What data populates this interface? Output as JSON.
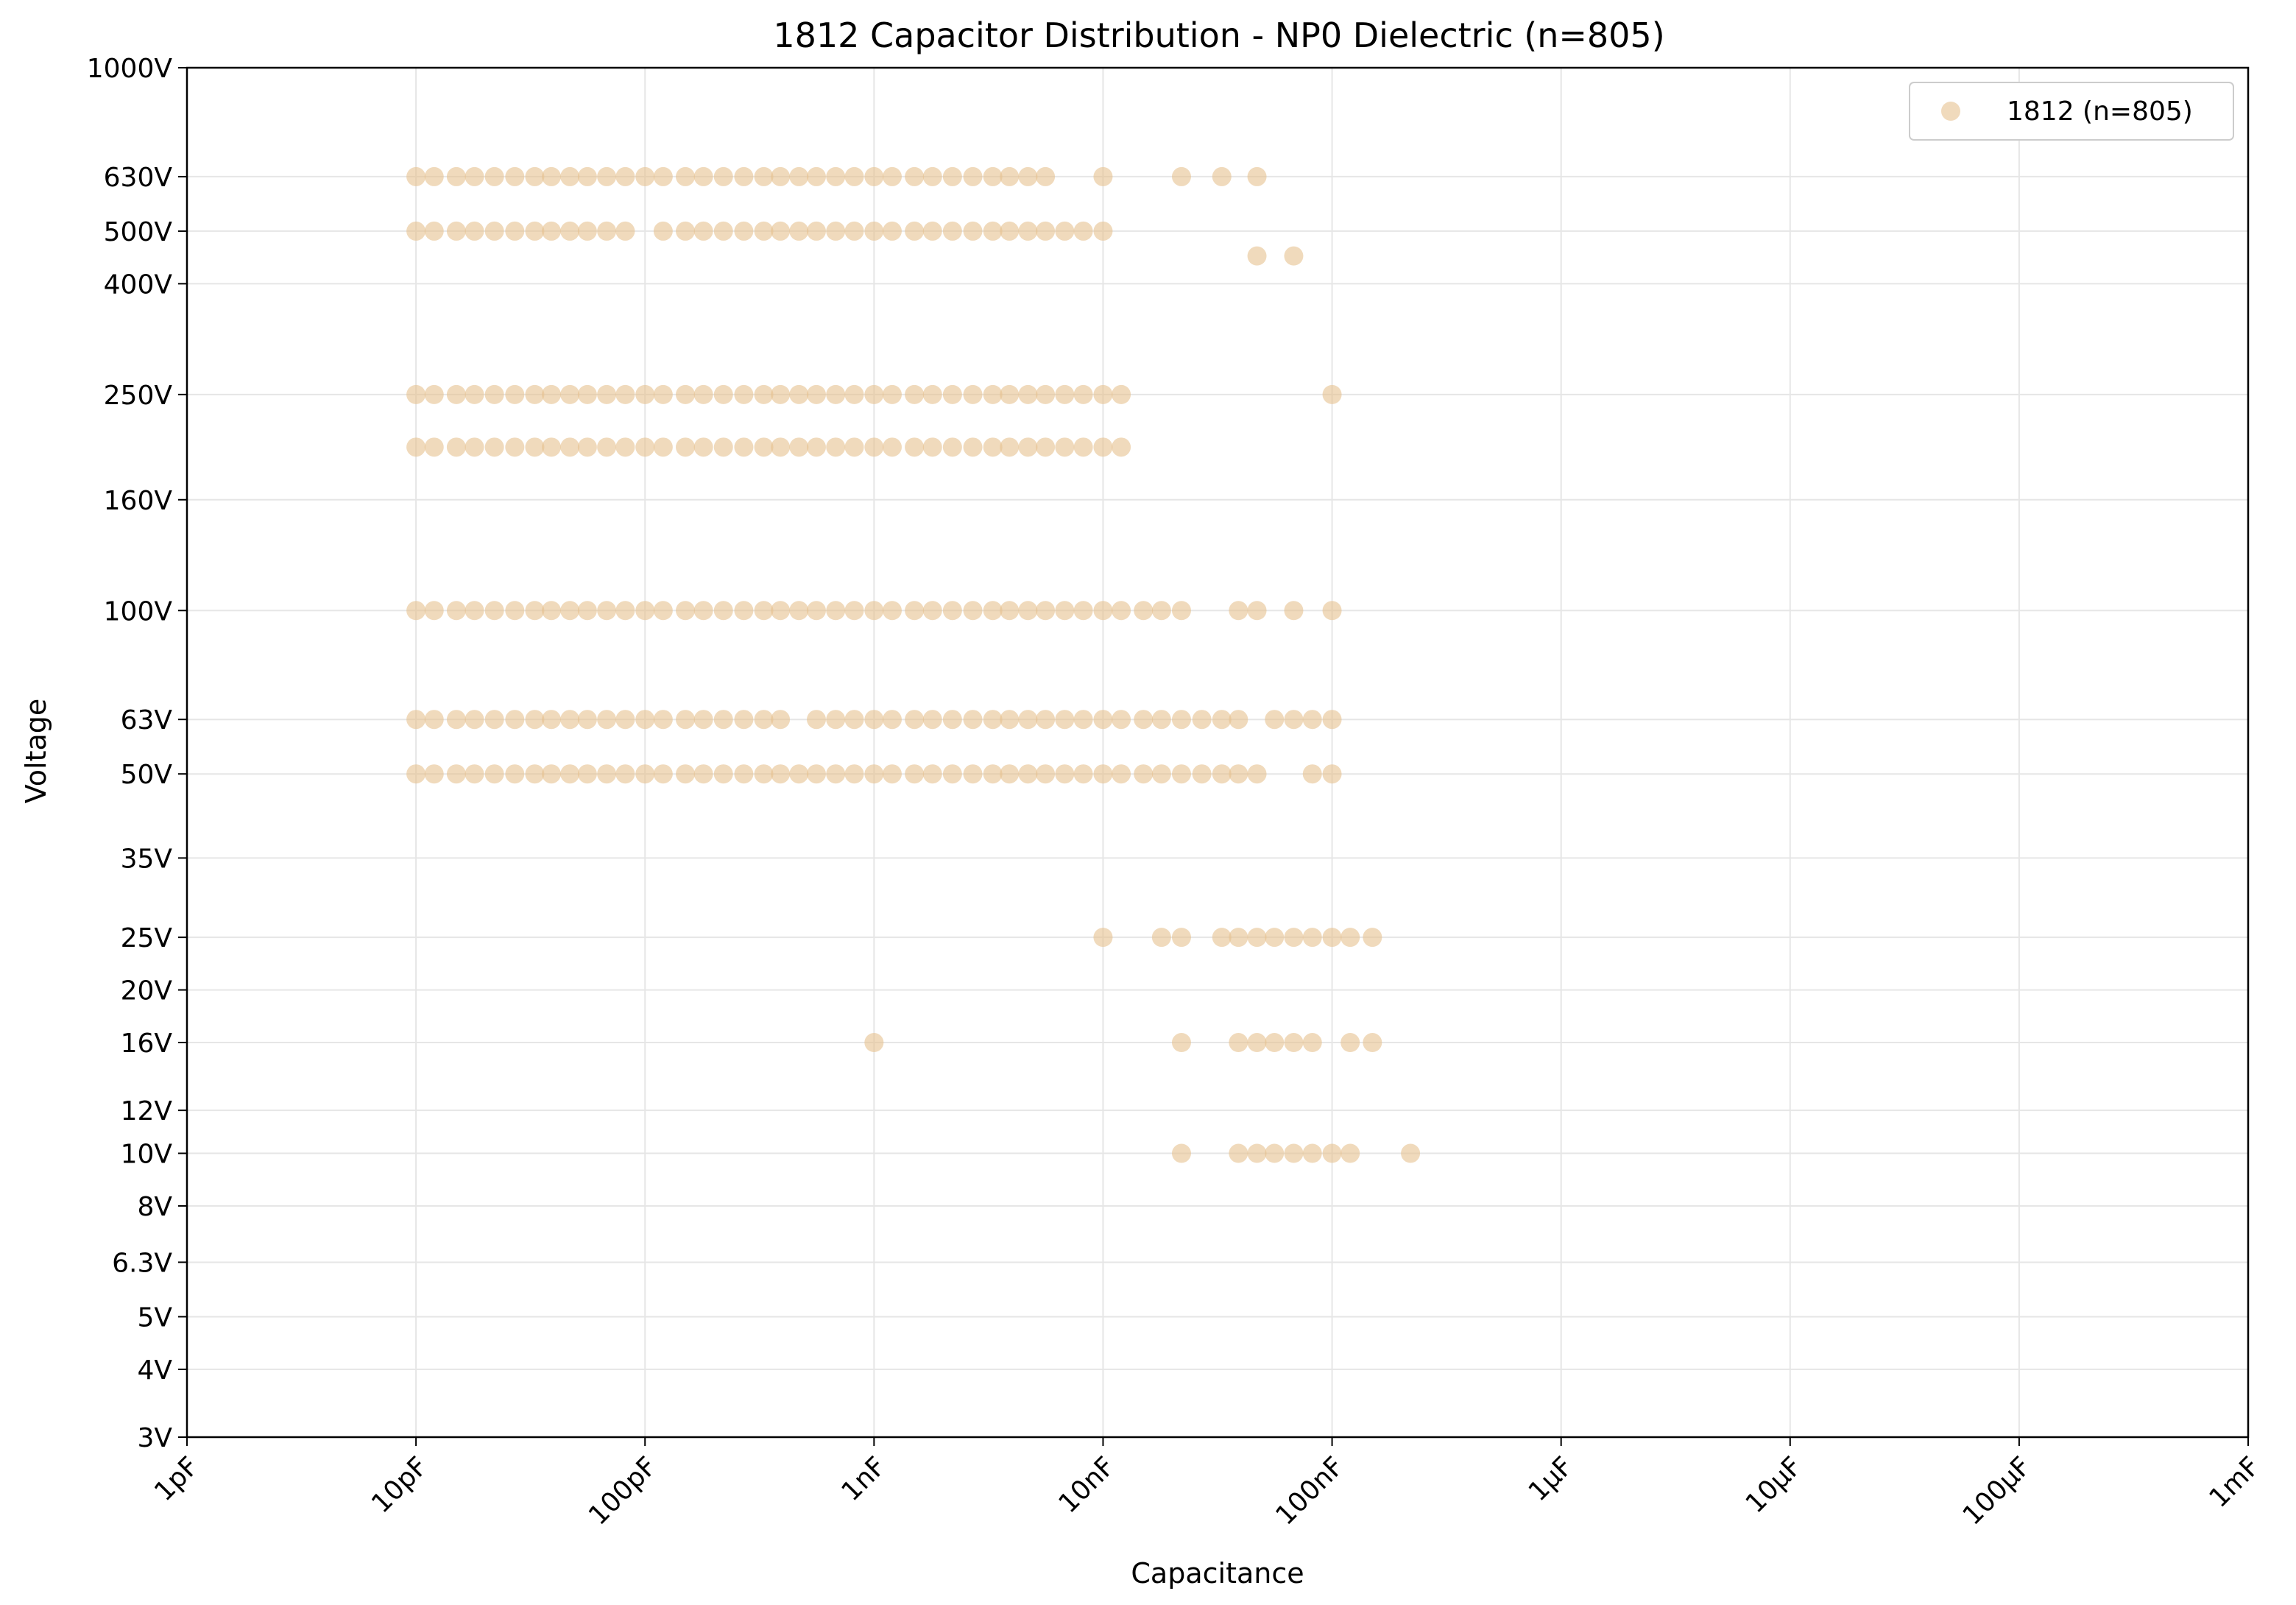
{
  "chart_data": {
    "type": "scatter",
    "title": "1812 Capacitor Distribution - NP0 Dielectric (n=805)",
    "xlabel": "Capacitance",
    "ylabel": "Voltage",
    "x_scale": "log",
    "y_scale": "log",
    "xlim": [
      "1pF",
      "1mF"
    ],
    "ylim": [
      "3V",
      "1000V"
    ],
    "grid": true,
    "legend_position": "top-right",
    "x_ticks": [
      "1pF",
      "10pF",
      "100pF",
      "1nF",
      "10nF",
      "100nF",
      "1µF",
      "10µF",
      "100µF",
      "1mF"
    ],
    "y_ticks": [
      "3V",
      "4V",
      "5V",
      "6.3V",
      "8V",
      "10V",
      "12V",
      "16V",
      "20V",
      "25V",
      "35V",
      "50V",
      "63V",
      "100V",
      "160V",
      "250V",
      "400V",
      "500V",
      "630V",
      "1000V"
    ],
    "marker_color": "#e6c18f",
    "series": [
      {
        "name": "1812 (n=805)",
        "rows": [
          {
            "voltage": "630V",
            "capacitance": [
              "10pF",
              "12pF",
              "15pF",
              "18pF",
              "22pF",
              "27pF",
              "33pF",
              "39pF",
              "47pF",
              "56pF",
              "68pF",
              "82pF",
              "100pF",
              "120pF",
              "150pF",
              "180pF",
              "220pF",
              "270pF",
              "330pF",
              "390pF",
              "470pF",
              "560pF",
              "680pF",
              "820pF",
              "1nF",
              "1.2nF",
              "1.5nF",
              "1.8nF",
              "2.2nF",
              "2.7nF",
              "3.3nF",
              "3.9nF",
              "4.7nF",
              "5.6nF",
              "10nF",
              "22nF",
              "33nF",
              "47nF"
            ]
          },
          {
            "voltage": "500V",
            "capacitance": [
              "10pF",
              "12pF",
              "15pF",
              "18pF",
              "22pF",
              "27pF",
              "33pF",
              "39pF",
              "47pF",
              "56pF",
              "68pF",
              "82pF",
              "120pF",
              "150pF",
              "180pF",
              "220pF",
              "270pF",
              "330pF",
              "390pF",
              "470pF",
              "560pF",
              "680pF",
              "820pF",
              "1nF",
              "1.2nF",
              "1.5nF",
              "1.8nF",
              "2.2nF",
              "2.7nF",
              "3.3nF",
              "3.9nF",
              "4.7nF",
              "5.6nF",
              "6.8nF",
              "8.2nF",
              "10nF"
            ]
          },
          {
            "voltage": "450V",
            "capacitance": [
              "47nF",
              "68nF"
            ]
          },
          {
            "voltage": "250V",
            "capacitance": [
              "10pF",
              "12pF",
              "15pF",
              "18pF",
              "22pF",
              "27pF",
              "33pF",
              "39pF",
              "47pF",
              "56pF",
              "68pF",
              "82pF",
              "100pF",
              "120pF",
              "150pF",
              "180pF",
              "220pF",
              "270pF",
              "330pF",
              "390pF",
              "470pF",
              "560pF",
              "680pF",
              "820pF",
              "1nF",
              "1.2nF",
              "1.5nF",
              "1.8nF",
              "2.2nF",
              "2.7nF",
              "3.3nF",
              "3.9nF",
              "4.7nF",
              "5.6nF",
              "6.8nF",
              "8.2nF",
              "10nF",
              "12nF",
              "100nF"
            ]
          },
          {
            "voltage": "200V",
            "capacitance": [
              "10pF",
              "12pF",
              "15pF",
              "18pF",
              "22pF",
              "27pF",
              "33pF",
              "39pF",
              "47pF",
              "56pF",
              "68pF",
              "82pF",
              "100pF",
              "120pF",
              "150pF",
              "180pF",
              "220pF",
              "270pF",
              "330pF",
              "390pF",
              "470pF",
              "560pF",
              "680pF",
              "820pF",
              "1nF",
              "1.2nF",
              "1.5nF",
              "1.8nF",
              "2.2nF",
              "2.7nF",
              "3.3nF",
              "3.9nF",
              "4.7nF",
              "5.6nF",
              "6.8nF",
              "8.2nF",
              "10nF",
              "12nF"
            ]
          },
          {
            "voltage": "100V",
            "capacitance": [
              "10pF",
              "12pF",
              "15pF",
              "18pF",
              "22pF",
              "27pF",
              "33pF",
              "39pF",
              "47pF",
              "56pF",
              "68pF",
              "82pF",
              "100pF",
              "120pF",
              "150pF",
              "180pF",
              "220pF",
              "270pF",
              "330pF",
              "390pF",
              "470pF",
              "560pF",
              "680pF",
              "820pF",
              "1nF",
              "1.2nF",
              "1.5nF",
              "1.8nF",
              "2.2nF",
              "2.7nF",
              "3.3nF",
              "3.9nF",
              "4.7nF",
              "5.6nF",
              "6.8nF",
              "8.2nF",
              "10nF",
              "12nF",
              "15nF",
              "18nF",
              "22nF",
              "39nF",
              "47nF",
              "68nF",
              "100nF"
            ]
          },
          {
            "voltage": "63V",
            "capacitance": [
              "10pF",
              "12pF",
              "15pF",
              "18pF",
              "22pF",
              "27pF",
              "33pF",
              "39pF",
              "47pF",
              "56pF",
              "68pF",
              "82pF",
              "100pF",
              "120pF",
              "150pF",
              "180pF",
              "220pF",
              "270pF",
              "330pF",
              "390pF",
              "560pF",
              "680pF",
              "820pF",
              "1nF",
              "1.2nF",
              "1.5nF",
              "1.8nF",
              "2.2nF",
              "2.7nF",
              "3.3nF",
              "3.9nF",
              "4.7nF",
              "5.6nF",
              "6.8nF",
              "8.2nF",
              "10nF",
              "12nF",
              "15nF",
              "18nF",
              "22nF",
              "27nF",
              "33nF",
              "39nF",
              "56nF",
              "68nF",
              "82nF",
              "100nF"
            ]
          },
          {
            "voltage": "50V",
            "capacitance": [
              "10pF",
              "12pF",
              "15pF",
              "18pF",
              "22pF",
              "27pF",
              "33pF",
              "39pF",
              "47pF",
              "56pF",
              "68pF",
              "82pF",
              "100pF",
              "120pF",
              "150pF",
              "180pF",
              "220pF",
              "270pF",
              "330pF",
              "390pF",
              "470pF",
              "560pF",
              "680pF",
              "820pF",
              "1nF",
              "1.2nF",
              "1.5nF",
              "1.8nF",
              "2.2nF",
              "2.7nF",
              "3.3nF",
              "3.9nF",
              "4.7nF",
              "5.6nF",
              "6.8nF",
              "8.2nF",
              "10nF",
              "12nF",
              "15nF",
              "18nF",
              "22nF",
              "27nF",
              "33nF",
              "39nF",
              "47nF",
              "82nF",
              "100nF"
            ]
          },
          {
            "voltage": "25V",
            "capacitance": [
              "10nF",
              "18nF",
              "22nF",
              "33nF",
              "39nF",
              "47nF",
              "56nF",
              "68nF",
              "82nF",
              "100nF",
              "120nF",
              "150nF"
            ]
          },
          {
            "voltage": "16V",
            "capacitance": [
              "1nF",
              "22nF",
              "39nF",
              "47nF",
              "56nF",
              "68nF",
              "82nF",
              "120nF",
              "150nF"
            ]
          },
          {
            "voltage": "10V",
            "capacitance": [
              "22nF",
              "39nF",
              "47nF",
              "56nF",
              "68nF",
              "82nF",
              "100nF",
              "120nF",
              "220nF"
            ]
          }
        ]
      }
    ]
  }
}
